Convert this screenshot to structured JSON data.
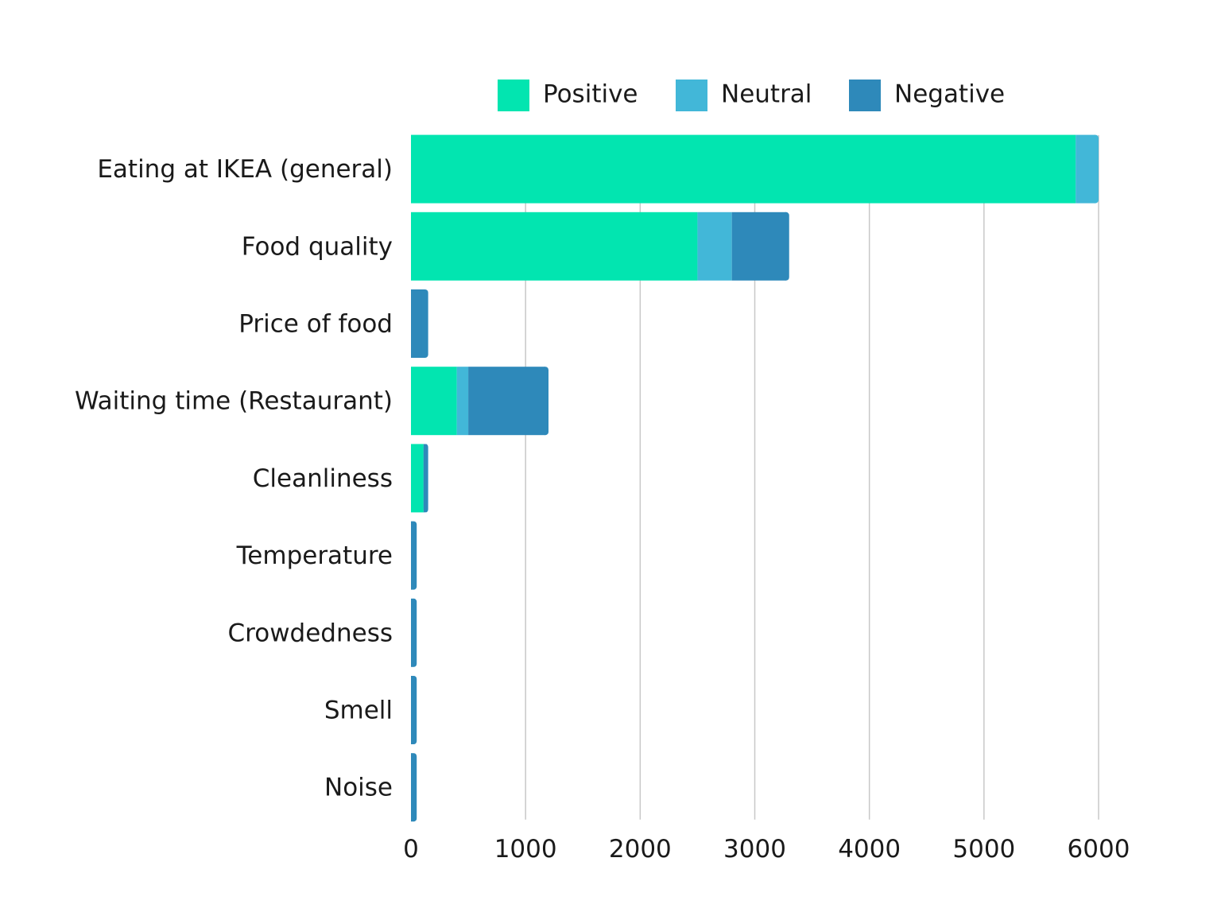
{
  "chart_data": {
    "type": "bar",
    "orientation": "horizontal",
    "stacked": true,
    "title": "",
    "xlabel": "",
    "ylabel": "",
    "categories": [
      "Eating at IKEA (general)",
      "Food quality",
      "Price of food",
      "Waiting time (Restaurant)",
      "Cleanliness",
      "Temperature",
      "Crowdedness",
      "Smell",
      "Noise"
    ],
    "series": [
      {
        "name": "Positive",
        "color": "#02e5b0",
        "values": [
          5800,
          2500,
          0,
          400,
          110,
          0,
          0,
          0,
          0
        ]
      },
      {
        "name": "Neutral",
        "color": "#42b7d8",
        "values": [
          200,
          300,
          0,
          100,
          0,
          0,
          0,
          0,
          0
        ]
      },
      {
        "name": "Negative",
        "color": "#2e89ba",
        "values": [
          0,
          500,
          150,
          700,
          40,
          50,
          50,
          50,
          50
        ]
      }
    ],
    "xlim": [
      0,
      6000
    ],
    "xticks": [
      "0",
      "1000",
      "2000",
      "3000",
      "4000",
      "5000",
      "6000"
    ],
    "xtick_values": [
      0,
      1000,
      2000,
      3000,
      4000,
      5000,
      6000
    ],
    "grid": true,
    "legend_position": "top"
  }
}
